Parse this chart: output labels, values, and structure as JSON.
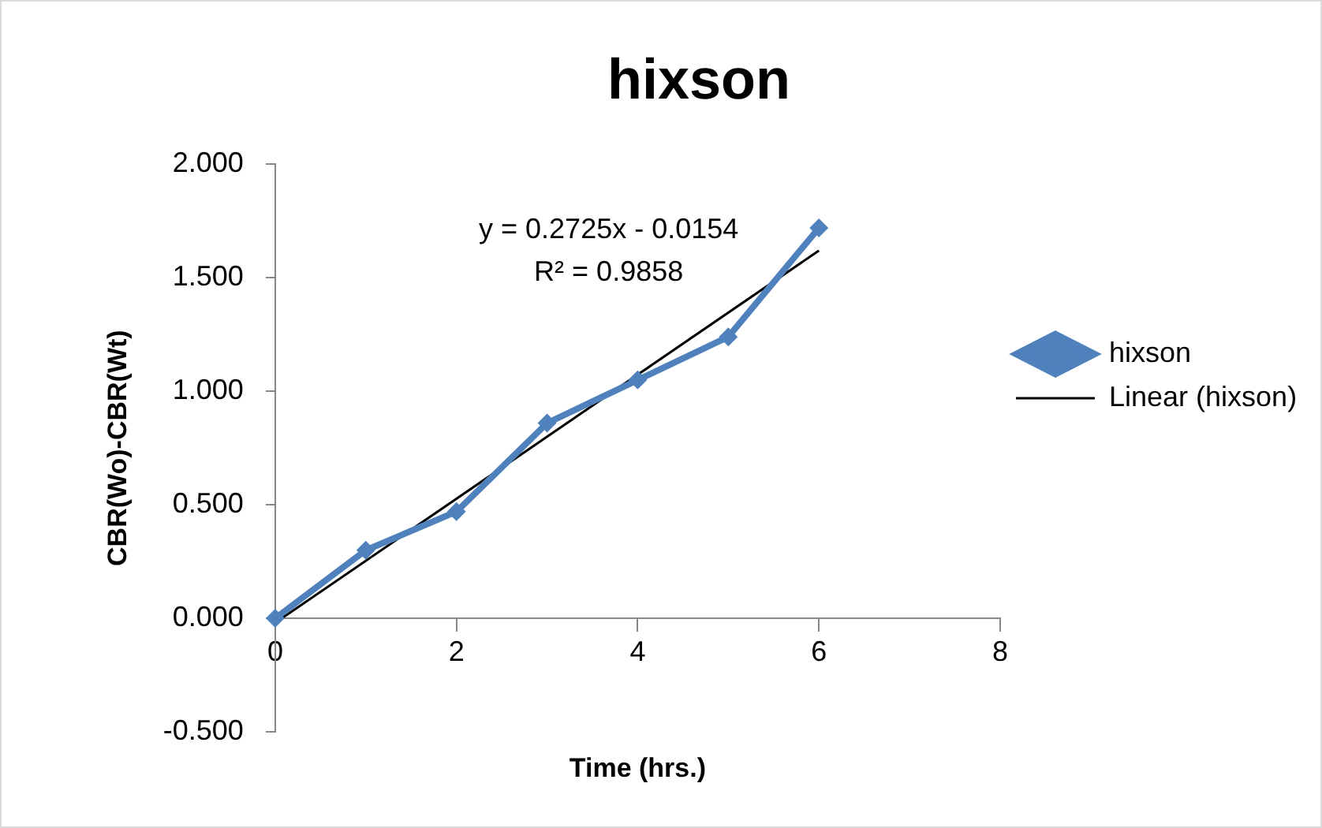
{
  "chart_data": {
    "type": "line",
    "title": "hixson",
    "xlabel": "Time (hrs.)",
    "ylabel": "CBR(Wo)-CBR(Wt)",
    "x": [
      0,
      1,
      2,
      3,
      4,
      5,
      6
    ],
    "series": [
      {
        "name": "hixson",
        "color": "#4f81bd",
        "values": [
          0,
          0.3,
          0.47,
          0.86,
          1.05,
          1.24,
          1.72
        ]
      },
      {
        "name": "Linear (hixson)",
        "color": "#000000",
        "x": [
          0,
          6
        ],
        "values": [
          -0.02,
          1.62
        ],
        "marker": "none"
      }
    ],
    "xlim": [
      0,
      8
    ],
    "xticks": [
      0,
      2,
      4,
      6,
      8
    ],
    "ylim": [
      -0.5,
      2
    ],
    "yticks": [
      {
        "value": -0.5,
        "label": "-0.500"
      },
      {
        "value": 0,
        "label": "0.000"
      },
      {
        "value": 0.5,
        "label": "0.500"
      },
      {
        "value": 1,
        "label": "1.000"
      },
      {
        "value": 1.5,
        "label": "1.500"
      },
      {
        "value": 2,
        "label": "2.000"
      }
    ],
    "annotations": [
      "y = 0.2725x - 0.0154",
      "R² = 0.9858"
    ],
    "grid": false,
    "legend": "right",
    "marker": "diamond"
  }
}
